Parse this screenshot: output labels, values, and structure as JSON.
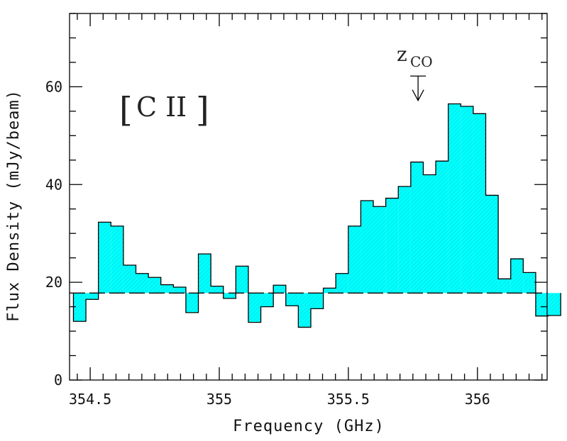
{
  "chart_data": {
    "type": "bar",
    "style": "histogram",
    "xlabel": "Frequency (GHz)",
    "ylabel": "Flux Density (mJy/beam)",
    "xlim": [
      354.42,
      356.27
    ],
    "ylim": [
      0,
      75
    ],
    "xticks": [
      "354.5",
      "355",
      "355.5",
      "356"
    ],
    "xtick_values": [
      354.5,
      355.0,
      355.5,
      356.0
    ],
    "yticks": [
      "0",
      "20",
      "40",
      "60"
    ],
    "ytick_values": [
      0,
      20,
      40,
      60
    ],
    "fill_color": "#00ffff",
    "baseline": 17.8,
    "bins": {
      "start": 354.435,
      "width": 0.0484,
      "values": [
        12.0,
        16.5,
        32.3,
        31.5,
        23.5,
        21.8,
        21.0,
        19.5,
        19.0,
        13.8,
        25.8,
        19.2,
        16.7,
        23.3,
        11.8,
        15.0,
        19.4,
        15.2,
        10.8,
        14.6,
        18.8,
        21.8,
        31.5,
        36.7,
        35.5,
        37.2,
        39.6,
        44.6,
        42.0,
        44.8,
        56.5,
        56.0,
        54.5,
        37.8,
        20.7,
        24.8,
        22.0,
        13.1,
        13.2
      ]
    },
    "annotations": {
      "line_label_open": "[",
      "line_label_text": "C II",
      "line_label_close": "]",
      "marker_label_main": "z",
      "marker_label_sub": "CO",
      "marker_x": 355.77,
      "marker_y_top": 62.2,
      "marker_y_bottom": 57.2
    },
    "grid": false,
    "legend": "none"
  }
}
